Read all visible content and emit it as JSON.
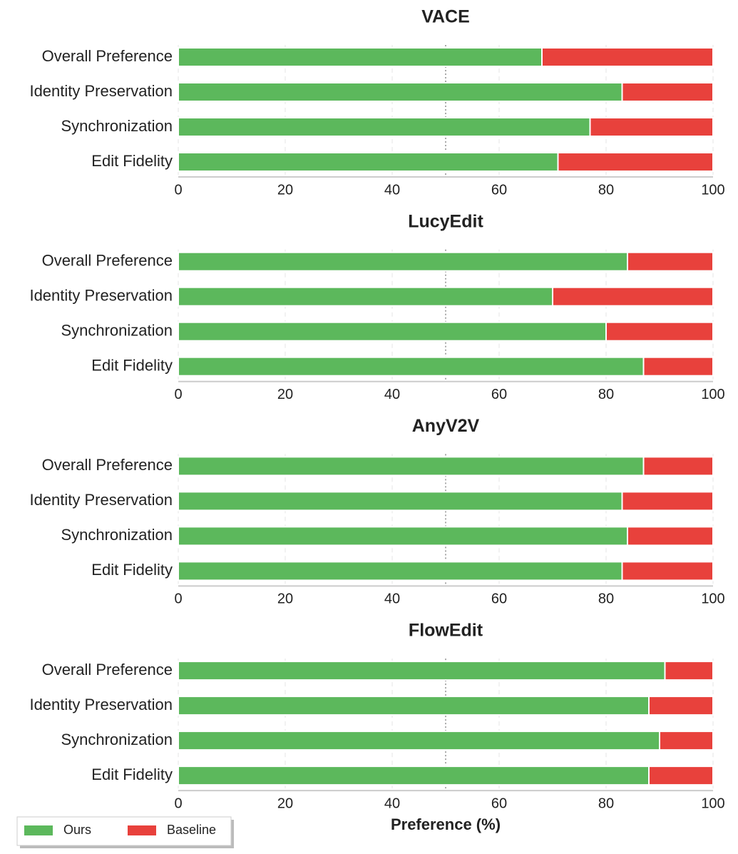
{
  "chart_data": [
    {
      "type": "stacked-barh",
      "title": "VACE",
      "categories": [
        "Overall Preference",
        "Identity Preservation",
        "Synchronization",
        "Edit Fidelity"
      ],
      "series": [
        {
          "name": "Ours",
          "color": "#5cb85c",
          "values": [
            68,
            83,
            77,
            71
          ]
        },
        {
          "name": "Baseline",
          "color": "#e8413c",
          "values": [
            32,
            17,
            23,
            29
          ]
        }
      ],
      "xlim": [
        0,
        100
      ],
      "xticks": [
        0,
        20,
        40,
        60,
        80,
        100
      ],
      "grid": true,
      "vline": 50
    },
    {
      "type": "stacked-barh",
      "title": "LucyEdit",
      "categories": [
        "Overall Preference",
        "Identity Preservation",
        "Synchronization",
        "Edit Fidelity"
      ],
      "series": [
        {
          "name": "Ours",
          "color": "#5cb85c",
          "values": [
            84,
            70,
            80,
            87
          ]
        },
        {
          "name": "Baseline",
          "color": "#e8413c",
          "values": [
            16,
            30,
            20,
            13
          ]
        }
      ],
      "xlim": [
        0,
        100
      ],
      "xticks": [
        0,
        20,
        40,
        60,
        80,
        100
      ],
      "grid": true,
      "vline": 50
    },
    {
      "type": "stacked-barh",
      "title": "AnyV2V",
      "categories": [
        "Overall Preference",
        "Identity Preservation",
        "Synchronization",
        "Edit Fidelity"
      ],
      "series": [
        {
          "name": "Ours",
          "color": "#5cb85c",
          "values": [
            87,
            83,
            84,
            83
          ]
        },
        {
          "name": "Baseline",
          "color": "#e8413c",
          "values": [
            13,
            17,
            16,
            17
          ]
        }
      ],
      "xlim": [
        0,
        100
      ],
      "xticks": [
        0,
        20,
        40,
        60,
        80,
        100
      ],
      "grid": true,
      "vline": 50
    },
    {
      "type": "stacked-barh",
      "title": "FlowEdit",
      "x_label": "Preference (%)",
      "categories": [
        "Overall Preference",
        "Identity Preservation",
        "Synchronization",
        "Edit Fidelity"
      ],
      "series": [
        {
          "name": "Ours",
          "color": "#5cb85c",
          "values": [
            91,
            88,
            90,
            88
          ]
        },
        {
          "name": "Baseline",
          "color": "#e8413c",
          "values": [
            9,
            12,
            10,
            12
          ]
        }
      ],
      "xlim": [
        0,
        100
      ],
      "xticks": [
        0,
        20,
        40,
        60,
        80,
        100
      ],
      "grid": true,
      "vline": 50,
      "legend": "lower-left"
    }
  ]
}
